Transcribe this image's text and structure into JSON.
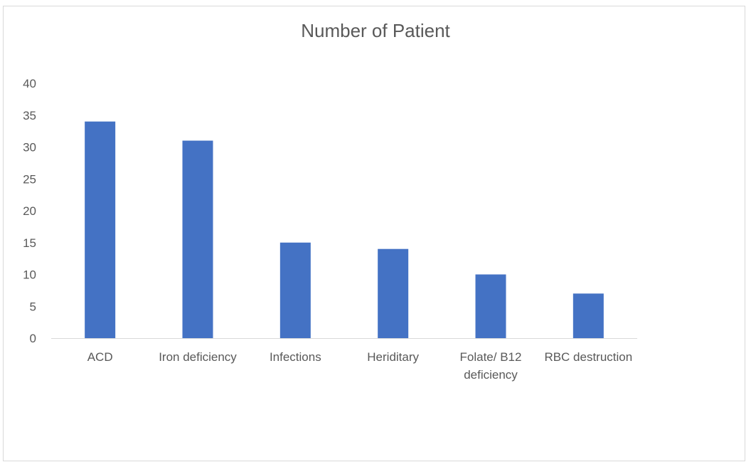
{
  "chart_data": {
    "type": "bar",
    "title": "Number of Patient",
    "categories": [
      "ACD",
      "Iron deficiency",
      "Infections",
      "Heriditary",
      "Folate/ B12 deficiency",
      "RBC destruction"
    ],
    "category_lines": [
      [
        "ACD"
      ],
      [
        "Iron deficiency"
      ],
      [
        "Infections"
      ],
      [
        "Heriditary"
      ],
      [
        "Folate/ B12",
        "deficiency"
      ],
      [
        "RBC destruction"
      ]
    ],
    "values": [
      34,
      31,
      15,
      14,
      10,
      7
    ],
    "xlabel": "",
    "ylabel": "",
    "ylim": [
      0,
      40
    ],
    "yticks": [
      0,
      5,
      10,
      15,
      20,
      25,
      30,
      35,
      40
    ],
    "grid": false,
    "legend": "none",
    "bar_color": "#4472c4",
    "axis_color": "#d9d9d9"
  }
}
